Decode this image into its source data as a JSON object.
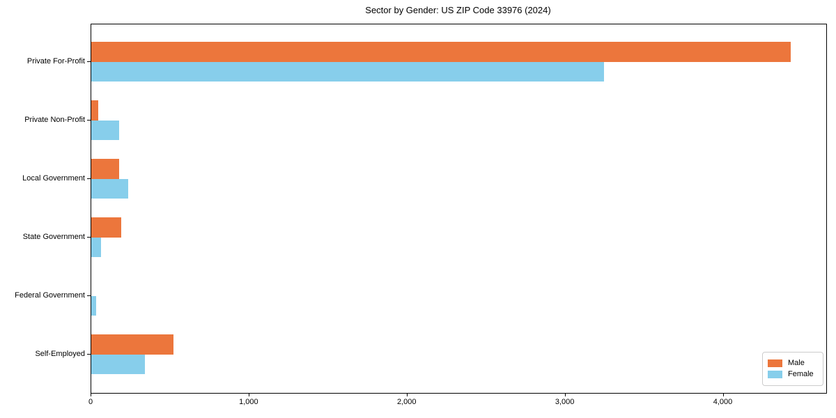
{
  "chart_data": {
    "type": "bar",
    "orientation": "horizontal",
    "title": "Sector by Gender: US ZIP Code 33976 (2024)",
    "categories": [
      "Private For-Profit",
      "Private Non-Profit",
      "Local Government",
      "State Government",
      "Federal Government",
      "Self-Employed"
    ],
    "series": [
      {
        "name": "Male",
        "color": "#ec763c",
        "values": [
          4425,
          45,
          175,
          190,
          0,
          520
        ]
      },
      {
        "name": "Female",
        "color": "#87ceeb",
        "values": [
          3245,
          175,
          235,
          63,
          33,
          340
        ]
      }
    ],
    "xlabel": "",
    "ylabel": "",
    "xlim": [
      0,
      4650
    ],
    "xticks": [
      0,
      1000,
      2000,
      3000,
      4000
    ],
    "xtick_labels": [
      "0",
      "1,000",
      "2,000",
      "3,000",
      "4,000"
    ],
    "grid": false,
    "legend_position": "lower right"
  }
}
